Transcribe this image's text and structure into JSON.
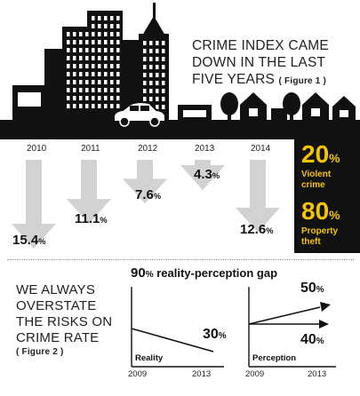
{
  "figure1": {
    "title_lines": [
      "CRIME INDEX CAME",
      "DOWN IN THE LAST",
      "FIVE YEARS"
    ],
    "fig_label": "( Figure 1 )"
  },
  "chart_data": [
    {
      "type": "bar",
      "title": "CRIME INDEX CAME DOWN IN THE LAST FIVE YEARS",
      "categories": [
        "2010",
        "2011",
        "2012",
        "2013",
        "2014"
      ],
      "values": [
        15.4,
        11.1,
        7.6,
        4.3,
        12.6
      ],
      "value_labels": [
        "15.4",
        "11.1",
        "7.6",
        "4.3",
        "12.6"
      ],
      "unit": "%",
      "direction": "down",
      "breakdown": [
        {
          "value": "20",
          "unit": "%",
          "label_lines": [
            "Violent",
            "crime"
          ]
        },
        {
          "value": "80",
          "unit": "%",
          "label_lines": [
            "Property",
            "theft"
          ]
        }
      ]
    },
    {
      "type": "line",
      "title": "90% reality-perception gap",
      "panels": [
        {
          "name": "Reality",
          "x": [
            "2009",
            "2013"
          ],
          "trend": "down",
          "end_label": "30%"
        },
        {
          "name": "Perception",
          "x": [
            "2009",
            "2013"
          ],
          "trend": "up",
          "end_labels": [
            "50%",
            "40%"
          ]
        }
      ]
    }
  ],
  "figure2": {
    "title_lines": [
      "WE ALWAYS",
      "OVERSTATE",
      "THE RISKS ON",
      "CRIME RATE"
    ],
    "fig_label": "( Figure 2 )",
    "gap_value": "90",
    "gap_unit": "%",
    "gap_text": " reality-perception gap",
    "reality_label": "Reality",
    "perception_label": "Perception",
    "reality_end": "30",
    "perception_top": "50",
    "perception_bottom": "40",
    "pct_unit": "%",
    "year_start": "2009",
    "year_end": "2013"
  },
  "colors": {
    "accent": "#f5c400",
    "dark": "#111111",
    "arrow": "#d2d2d2"
  }
}
